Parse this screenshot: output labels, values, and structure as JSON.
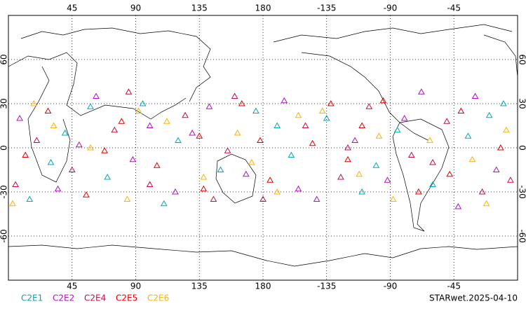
{
  "chart_data": {
    "type": "scatter",
    "title": "STARwet.2025-04-10",
    "xlim": [
      0,
      360
    ],
    "ylim": [
      -90,
      90
    ],
    "xticks": [
      45,
      90,
      135,
      180,
      {
        "value": 225,
        "label": "-135"
      },
      {
        "value": 270,
        "label": "-90"
      },
      {
        "value": 315,
        "label": "-45"
      }
    ],
    "yticks": [
      60,
      30,
      0,
      -30,
      -60
    ],
    "grid": true,
    "series": [
      {
        "name": "C2E1",
        "color": "#00a8b8",
        "x": [
          15,
          40,
          70,
          95,
          120,
          150,
          175,
          200,
          225,
          250,
          275,
          300,
          325,
          350,
          30,
          110,
          190,
          260,
          340,
          58
        ],
        "values": [
          -35,
          10,
          -20,
          30,
          5,
          -15,
          25,
          -5,
          20,
          -30,
          12,
          -25,
          8,
          30,
          -10,
          -38,
          15,
          -12,
          22,
          28
        ]
      },
      {
        "name": "C2E2",
        "color": "#b010c0",
        "x": [
          8,
          35,
          62,
          88,
          118,
          142,
          168,
          195,
          218,
          245,
          268,
          292,
          318,
          345,
          50,
          130,
          205,
          280,
          330,
          100
        ],
        "values": [
          20,
          -28,
          35,
          -8,
          -30,
          28,
          -18,
          32,
          -35,
          5,
          -22,
          38,
          -40,
          -15,
          2,
          10,
          -28,
          20,
          35,
          15
        ]
      },
      {
        "name": "C2E4",
        "color": "#c01040",
        "x": [
          20,
          45,
          75,
          100,
          125,
          155,
          180,
          210,
          235,
          255,
          285,
          310,
          335,
          355,
          85,
          160,
          240,
          300,
          5,
          145
        ],
        "values": [
          5,
          -15,
          12,
          -25,
          22,
          -2,
          -35,
          15,
          -20,
          28,
          -5,
          18,
          -30,
          -22,
          38,
          35,
          0,
          -10,
          -25,
          -35
        ]
      },
      {
        "name": "C2E5",
        "color": "#e00000",
        "x": [
          12,
          28,
          55,
          80,
          105,
          135,
          165,
          185,
          215,
          240,
          265,
          290,
          320,
          348,
          68,
          138,
          228,
          312,
          178,
          250
        ],
        "values": [
          -5,
          25,
          -32,
          18,
          -12,
          8,
          30,
          -22,
          3,
          -8,
          32,
          -30,
          25,
          0,
          -2,
          -28,
          30,
          -18,
          5,
          15
        ]
      },
      {
        "name": "C2E6",
        "color": "#ffb000",
        "x": [
          3,
          32,
          58,
          84,
          112,
          138,
          162,
          190,
          222,
          248,
          272,
          298,
          328,
          352,
          92,
          172,
          262,
          338,
          18,
          205
        ],
        "values": [
          -38,
          15,
          0,
          -35,
          18,
          -20,
          10,
          -30,
          25,
          -18,
          -35,
          5,
          -8,
          12,
          25,
          -10,
          8,
          -38,
          30,
          22
        ]
      }
    ]
  }
}
